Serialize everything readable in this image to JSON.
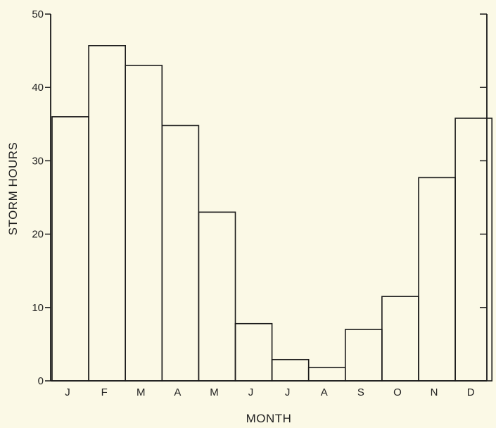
{
  "chart_data": {
    "type": "bar",
    "categories": [
      "J",
      "F",
      "M",
      "A",
      "M",
      "J",
      "J",
      "A",
      "S",
      "O",
      "N",
      "D"
    ],
    "values": [
      36,
      45.7,
      43,
      34.8,
      23,
      7.8,
      2.9,
      1.8,
      7,
      11.5,
      27.7,
      35.8
    ],
    "title": "",
    "xlabel": "MONTH",
    "ylabel": "STORM HOURS",
    "ylim": [
      0,
      50
    ],
    "yticks": [
      0,
      10,
      20,
      30,
      40,
      50
    ],
    "grid": false
  }
}
